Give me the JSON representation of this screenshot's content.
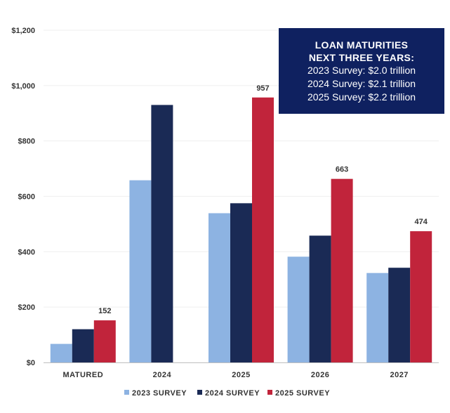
{
  "chart_data": {
    "type": "bar",
    "categories": [
      "MATURED",
      "2024",
      "2025",
      "2026",
      "2027"
    ],
    "series": [
      {
        "name": "2023 SURVEY",
        "color": "#8db3e2",
        "values": [
          67,
          658,
          539,
          382,
          323
        ]
      },
      {
        "name": "2024 SURVEY",
        "color": "#1a2a55",
        "values": [
          120,
          930,
          575,
          458,
          342
        ]
      },
      {
        "name": "2025 SURVEY",
        "color": "#c1243b",
        "values": [
          152,
          null,
          957,
          663,
          474
        ]
      }
    ],
    "data_labels": {
      "series": "2025 SURVEY",
      "values": [
        "152",
        null,
        "957",
        "663",
        "474"
      ]
    },
    "ylim": [
      0,
      1200
    ],
    "yticks": [
      0,
      200,
      400,
      600,
      800,
      1000,
      1200
    ],
    "ytick_labels": [
      "$0",
      "$200",
      "$400",
      "$600",
      "$800",
      "$1,000",
      "$1,200"
    ],
    "legend": [
      "2023 SURVEY",
      "2024 SURVEY",
      "2025 SURVEY"
    ],
    "legend_position": "bottom"
  },
  "callout": {
    "title_line1": "LOAN MATURITIES",
    "title_line2": "NEXT THREE YEARS:",
    "lines": [
      "2023 Survey:  $2.0 trillion",
      "2024 Survey:  $2.1 trillion",
      "2025 Survey:  $2.2 trillion"
    ],
    "background": "#0f2160"
  }
}
